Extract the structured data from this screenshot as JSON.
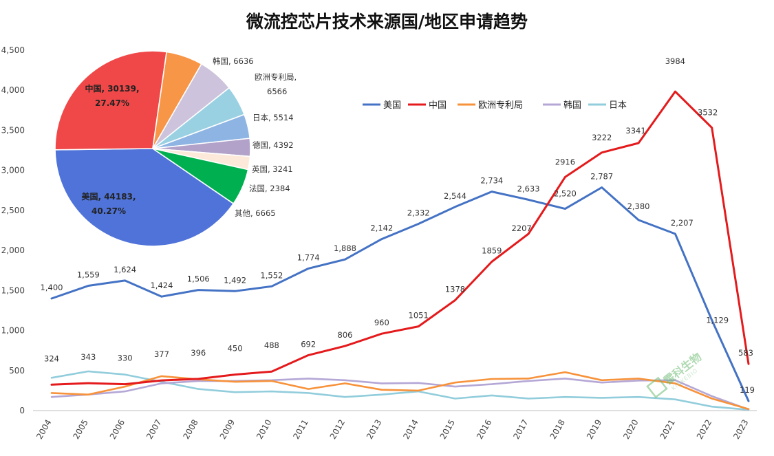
{
  "chart_data": [
    {
      "type": "line",
      "title": "微流控芯片技术来源国/地区申请趋势",
      "x": [
        "2004",
        "2005",
        "2006",
        "2007",
        "2008",
        "2009",
        "2010",
        "2011",
        "2012",
        "2013",
        "2014",
        "2015",
        "2016",
        "2017",
        "2018",
        "2019",
        "2020",
        "2021",
        "2022",
        "2023"
      ],
      "ylim": [
        0,
        4500
      ],
      "yticks": [
        "0",
        "500",
        "1,000",
        "1,500",
        "2,000",
        "2,500",
        "3,000",
        "3,500",
        "4,000",
        "4,500"
      ],
      "grid": false,
      "legend_position": "top-right",
      "series": [
        {
          "name": "美国",
          "color": "#4472c4",
          "values": [
            1400,
            1559,
            1624,
            1424,
            1506,
            1492,
            1552,
            1774,
            1888,
            2142,
            2332,
            2544,
            2734,
            2633,
            2520,
            2787,
            2380,
            2207,
            1129,
            119
          ],
          "labels": [
            "1,400",
            "1,559",
            "1,624",
            "1,424",
            "1,506",
            "1,492",
            "1,552",
            "1,774",
            "1,888",
            "2,142",
            "2,332",
            "2,544",
            "2,734",
            "2,633",
            "2,520",
            "2,787",
            "2,380",
            "2,207",
            "1,129",
            "119"
          ]
        },
        {
          "name": "中国",
          "color": "#e41a1c",
          "values": [
            324,
            343,
            330,
            377,
            396,
            450,
            488,
            692,
            806,
            960,
            1051,
            1378,
            1859,
            2207,
            2916,
            3222,
            3341,
            3984,
            3532,
            583
          ],
          "labels": [
            "324",
            "343",
            "330",
            "377",
            "396",
            "450",
            "488",
            "692",
            "806",
            "960",
            "1051",
            "1378",
            "1859",
            "2207",
            "2916",
            "3222",
            "3341",
            "3984",
            "3532",
            "583"
          ]
        },
        {
          "name": "欧洲专利局",
          "color": "#f7923a",
          "values": [
            220,
            200,
            300,
            430,
            390,
            360,
            370,
            270,
            340,
            260,
            250,
            350,
            395,
            400,
            480,
            380,
            400,
            340,
            150,
            20
          ]
        },
        {
          "name": "韩国",
          "color": "#b4a7d6",
          "values": [
            170,
            200,
            240,
            340,
            370,
            370,
            380,
            400,
            380,
            340,
            345,
            300,
            330,
            370,
            400,
            350,
            375,
            380,
            180,
            15
          ]
        },
        {
          "name": "日本",
          "color": "#92cddc",
          "values": [
            410,
            490,
            450,
            360,
            270,
            230,
            240,
            220,
            170,
            200,
            240,
            150,
            190,
            150,
            170,
            160,
            170,
            140,
            50,
            10
          ]
        }
      ]
    },
    {
      "type": "pie",
      "slices": [
        {
          "name": "美国",
          "value": 44183,
          "label": "美国, 44183,",
          "label2": "40.27%",
          "color": "#4f73d9"
        },
        {
          "name": "中国",
          "value": 30139,
          "label": "中国, 30139,",
          "label2": "27.47%",
          "color": "#f04848"
        },
        {
          "name": "韩国",
          "value": 6636,
          "label": "韩国, 6636",
          "color": "#f79646"
        },
        {
          "name": "欧洲专利局",
          "value": 6566,
          "label": "欧洲专利局,",
          "label2": "6566",
          "color": "#cdc3dc"
        },
        {
          "name": "日本",
          "value": 5514,
          "label": "日本, 5514",
          "color": "#99d1e3"
        },
        {
          "name": "德国",
          "value": 4392,
          "label": "德国, 4392",
          "color": "#8db4e3"
        },
        {
          "name": "英国",
          "value": 3241,
          "label": "英国, 3241",
          "color": "#b2a2c9"
        },
        {
          "name": "法国",
          "value": 2384,
          "label": "法国, 2384",
          "color": "#fde9d9"
        },
        {
          "name": "其他",
          "value": 6665,
          "label": "其他, 6665",
          "color": "#00b050"
        }
      ]
    }
  ],
  "watermark": {
    "main": "霍科生物",
    "sub": "KINKEBIO"
  }
}
